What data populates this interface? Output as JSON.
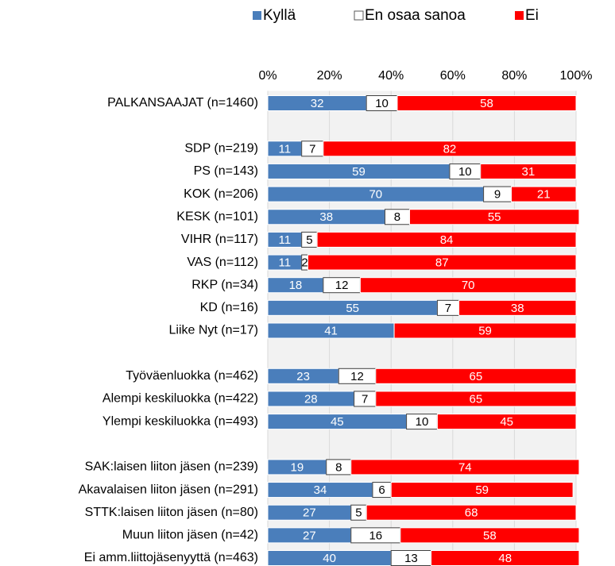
{
  "chart_data": {
    "type": "stacked-bar-horizontal",
    "categories": [
      "PALKANSAAJAT (n=1460)",
      null,
      "SDP (n=219)",
      "PS (n=143)",
      "KOK (n=206)",
      "KESK (n=101)",
      "VIHR (n=117)",
      "VAS (n=112)",
      "RKP (n=34)",
      "KD (n=16)",
      "Liike Nyt (n=17)",
      null,
      "Työväenluokka (n=462)",
      "Alempi keskiluokka (n=422)",
      "Ylempi keskiluokka (n=493)",
      null,
      "SAK:laisen liiton jäsen (n=239)",
      "Akavalaisen liiton jäsen (n=291)",
      "STTK:laisen liiton jäsen (n=80)",
      "Muun liiton jäsen (n=42)",
      "Ei amm.liittojäsenyyttä (n=463)"
    ],
    "series": [
      {
        "name": "Kyllä",
        "color": "#4a7ebb",
        "values": [
          32,
          null,
          11,
          59,
          70,
          38,
          11,
          11,
          18,
          55,
          41,
          null,
          23,
          28,
          45,
          null,
          19,
          34,
          27,
          27,
          40
        ]
      },
      {
        "name": "En osaa sanoa",
        "color": "#ffffff",
        "values": [
          10,
          null,
          7,
          10,
          9,
          8,
          5,
          2,
          12,
          7,
          null,
          null,
          12,
          7,
          10,
          null,
          8,
          6,
          5,
          16,
          13
        ]
      },
      {
        "name": "Ei",
        "color": "#ff0000",
        "values": [
          58,
          null,
          82,
          31,
          21,
          55,
          84,
          87,
          70,
          38,
          59,
          null,
          65,
          65,
          45,
          null,
          74,
          59,
          68,
          58,
          48
        ]
      }
    ],
    "xlim": [
      0,
      100
    ],
    "xticks": [
      {
        "value": 0,
        "label": "0%"
      },
      {
        "value": 20,
        "label": "20%"
      },
      {
        "value": 40,
        "label": "40%"
      },
      {
        "value": 60,
        "label": "60%"
      },
      {
        "value": 80,
        "label": "80%"
      },
      {
        "value": 100,
        "label": "100%"
      }
    ],
    "grid": true,
    "legend": "top"
  }
}
